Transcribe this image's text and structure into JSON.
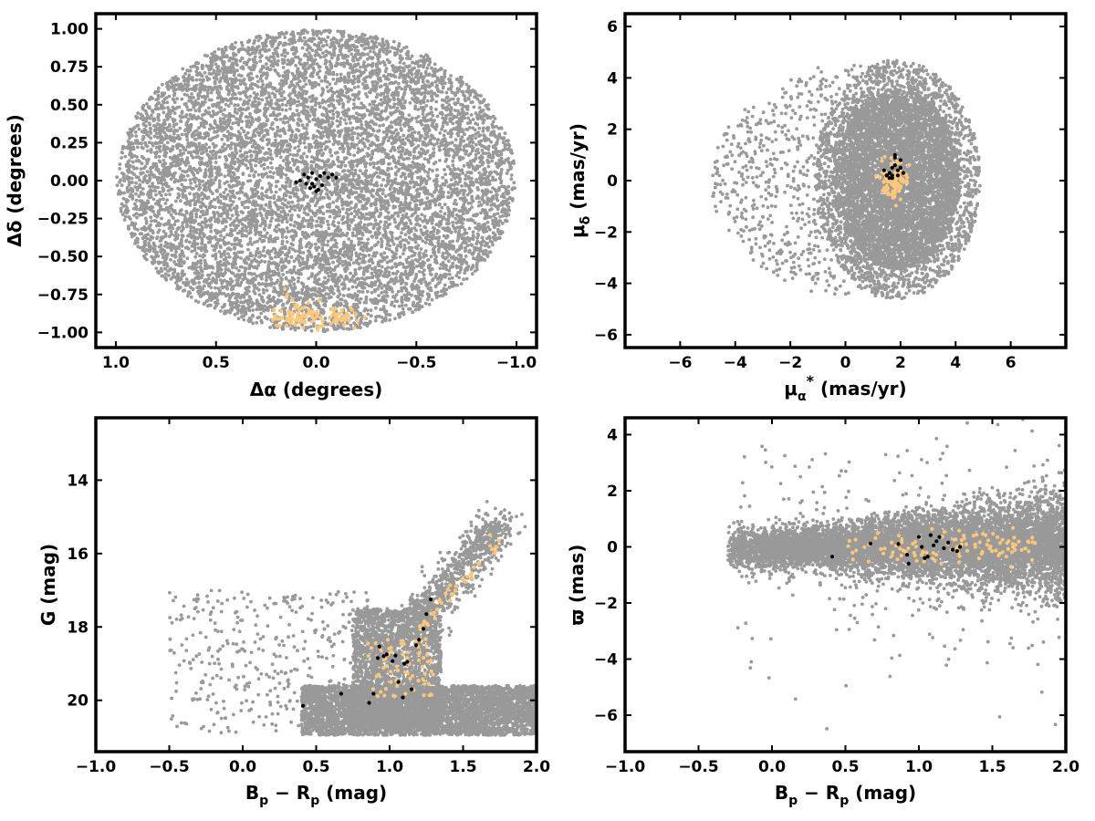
{
  "chart_data": [
    {
      "type": "scatter",
      "id": "sky",
      "xlabel": "Δα (degrees)",
      "ylabel": "Δδ (degrees)",
      "xlim": [
        1.1,
        -1.1
      ],
      "ylim": [
        -1.1,
        1.1
      ],
      "xticks": [
        1.0,
        0.5,
        0.0,
        -0.5,
        -1.0
      ],
      "xtick_labels": [
        "1.0",
        "0.5",
        "0.0",
        "−0.5",
        "−1.0"
      ],
      "yticks": [
        1.0,
        0.75,
        0.5,
        0.25,
        0.0,
        -0.25,
        -0.5,
        -0.75,
        -1.0
      ],
      "ytick_labels": [
        "1.00",
        "0.75",
        "0.50",
        "0.25",
        "0.00",
        "−0.25",
        "−0.50",
        "−0.75",
        "−1.00"
      ],
      "series": [
        {
          "color": "#999999",
          "distribution": "uniform disk of radius 1.0 deg centred at (0, 0)",
          "approx_points": 9000
        },
        {
          "color": "#000000",
          "points": [
            [
              0.06,
              0.04
            ],
            [
              0.04,
              0.02
            ],
            [
              0.02,
              0.05
            ],
            [
              0.0,
              0.01
            ],
            [
              -0.02,
              0.03
            ],
            [
              -0.04,
              0.05
            ],
            [
              -0.06,
              0.02
            ],
            [
              -0.08,
              0.04
            ],
            [
              -0.1,
              0.02
            ],
            [
              0.08,
              0.0
            ],
            [
              0.1,
              -0.01
            ],
            [
              0.05,
              -0.02
            ],
            [
              0.01,
              -0.04
            ],
            [
              -0.01,
              -0.06
            ],
            [
              0.03,
              -0.05
            ],
            [
              -0.03,
              -0.03
            ],
            [
              0.0,
              -0.07
            ],
            [
              0.02,
              -0.02
            ]
          ]
        },
        {
          "color": "#ffc77a",
          "region": "clumps near Δα ≈ −0.2…0.2, Δδ ≈ −0.98…−0.72",
          "approx_points": 120
        }
      ],
      "grid": false
    },
    {
      "type": "scatter",
      "id": "pm",
      "xlabel": "μ",
      "xlabel_sub": "α",
      "xlabel_sup": "*",
      "xlabel_unit": "(mas/yr)",
      "ylabel": "μ",
      "ylabel_sub": "δ",
      "ylabel_unit": "(mas/yr)",
      "xlim": [
        -8,
        8
      ],
      "ylim": [
        -6.5,
        6.5
      ],
      "xticks": [
        -6,
        -4,
        -2,
        0,
        2,
        4,
        6
      ],
      "xtick_labels": [
        "−6",
        "−4",
        "−2",
        "0",
        "2",
        "4",
        "6"
      ],
      "yticks": [
        6,
        4,
        2,
        0,
        -2,
        -4,
        -6
      ],
      "ytick_labels": [
        "6",
        "4",
        "2",
        "0",
        "−2",
        "−4",
        "−6"
      ],
      "series": [
        {
          "color": "#999999",
          "distribution": "dense disk centred near (2, 0) radius ≈ 3, sparse halo to μα ≈ −5",
          "approx_points": 8000
        },
        {
          "color": "#ffc77a",
          "region": "clump μα ≈ 1.3…2.3, μδ ≈ −0.6…1.2",
          "approx_points": 90
        },
        {
          "color": "#000000",
          "points": [
            [
              1.4,
              0.4
            ],
            [
              1.5,
              0.2
            ],
            [
              1.6,
              0.3
            ],
            [
              1.7,
              0.5
            ],
            [
              1.8,
              0.6
            ],
            [
              1.9,
              0.4
            ],
            [
              2.0,
              0.5
            ],
            [
              2.0,
              0.8
            ],
            [
              1.8,
              0.9
            ],
            [
              1.6,
              0.1
            ],
            [
              1.5,
              0.2
            ],
            [
              1.7,
              0.1
            ],
            [
              1.9,
              0.2
            ],
            [
              2.1,
              0.3
            ],
            [
              1.8,
              1.0
            ],
            [
              1.7,
              0.2
            ]
          ]
        }
      ],
      "grid": false
    },
    {
      "type": "scatter",
      "id": "cmd",
      "xlabel": "B",
      "xlabel_sub1": "p",
      "xlabel_mid": " − R",
      "xlabel_sub2": "p",
      "xlabel_unit": " (mag)",
      "ylabel": "G (mag)",
      "xlim": [
        -1.0,
        2.0
      ],
      "ylim": [
        21.4,
        12.3
      ],
      "xticks": [
        -1.0,
        -0.5,
        0.0,
        0.5,
        1.0,
        1.5,
        2.0
      ],
      "xtick_labels": [
        "−1.0",
        "−0.5",
        "0.0",
        "0.5",
        "1.0",
        "1.5",
        "2.0"
      ],
      "yticks": [
        20,
        18,
        16,
        14
      ],
      "ytick_labels": [
        "20",
        "18",
        "16",
        "14"
      ],
      "series": [
        {
          "color": "#999999",
          "distribution": "field stars; dense band G ≈ 19.5–21, colour 0.4–2.0; sequence toward (1.7, 15.5)",
          "approx_points": 8000
        },
        {
          "color": "#ffc77a",
          "region": "main sequence cluster members",
          "approx_points": 110
        },
        {
          "color": "#000000",
          "points": [
            [
              0.41,
              20.15
            ],
            [
              0.67,
              19.82
            ],
            [
              0.86,
              20.07
            ],
            [
              0.89,
              19.82
            ],
            [
              0.92,
              18.85
            ],
            [
              0.93,
              18.53
            ],
            [
              0.96,
              18.8
            ],
            [
              0.98,
              18.75
            ],
            [
              1.02,
              18.93
            ],
            [
              1.04,
              18.78
            ],
            [
              1.06,
              19.5
            ],
            [
              1.09,
              19.92
            ],
            [
              1.1,
              19.0
            ],
            [
              1.12,
              18.95
            ],
            [
              1.15,
              19.7
            ],
            [
              1.18,
              18.5
            ],
            [
              1.2,
              18.35
            ],
            [
              1.23,
              18.05
            ],
            [
              1.25,
              17.65
            ],
            [
              1.28,
              17.25
            ]
          ]
        }
      ],
      "grid": false
    },
    {
      "type": "scatter",
      "id": "parallax",
      "xlabel": "B",
      "xlabel_sub1": "p",
      "xlabel_mid": " − R",
      "xlabel_sub2": "p",
      "xlabel_unit": " (mag)",
      "ylabel": "ϖ (mas)",
      "xlim": [
        -1.0,
        2.0
      ],
      "ylim": [
        -7.3,
        4.6
      ],
      "xticks": [
        -1.0,
        -0.5,
        0.0,
        0.5,
        1.0,
        1.5,
        2.0
      ],
      "xtick_labels": [
        "−1.0",
        "−0.5",
        "0.0",
        "0.5",
        "1.0",
        "1.5",
        "2.0"
      ],
      "yticks": [
        4,
        2,
        0,
        -2,
        -4,
        -6
      ],
      "ytick_labels": [
        "4",
        "2",
        "0",
        "−2",
        "−4",
        "−6"
      ],
      "series": [
        {
          "color": "#999999",
          "distribution": "parallax ≈ 0 with scatter growing toward red colours",
          "approx_points": 8000
        },
        {
          "color": "#ffc77a",
          "region": "ϖ ≈ 0, colour 0.4–1.8",
          "approx_points": 110
        },
        {
          "color": "#000000",
          "points": [
            [
              0.41,
              -0.35
            ],
            [
              0.67,
              0.12
            ],
            [
              0.86,
              0.1
            ],
            [
              0.92,
              -0.28
            ],
            [
              0.93,
              -0.6
            ],
            [
              1.0,
              0.35
            ],
            [
              1.02,
              0.0
            ],
            [
              1.04,
              -0.4
            ],
            [
              1.06,
              -0.35
            ],
            [
              1.08,
              0.42
            ],
            [
              1.1,
              0.05
            ],
            [
              1.12,
              0.2
            ],
            [
              1.14,
              0.35
            ],
            [
              1.17,
              -0.05
            ],
            [
              1.2,
              0.15
            ],
            [
              1.23,
              -0.1
            ],
            [
              1.26,
              -0.15
            ],
            [
              1.28,
              0.0
            ]
          ]
        }
      ],
      "grid": false
    }
  ]
}
